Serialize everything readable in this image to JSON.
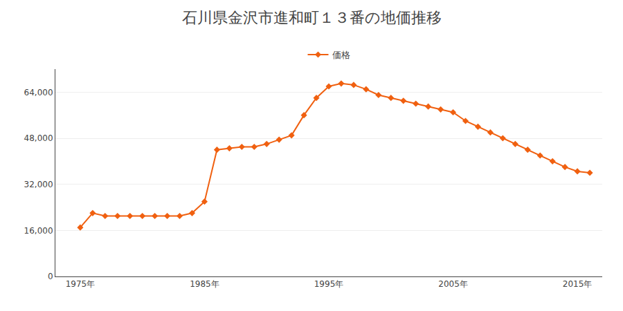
{
  "chart_data": {
    "type": "line",
    "title": "石川県金沢市進和町１３番の地価推移",
    "x": [
      1975,
      1976,
      1977,
      1978,
      1979,
      1980,
      1981,
      1982,
      1983,
      1984,
      1985,
      1986,
      1987,
      1988,
      1989,
      1990,
      1991,
      1992,
      1993,
      1994,
      1995,
      1996,
      1997,
      1998,
      1999,
      2000,
      2001,
      2002,
      2003,
      2004,
      2005,
      2006,
      2007,
      2008,
      2009,
      2010,
      2011,
      2012,
      2013,
      2014,
      2015,
      2016
    ],
    "series": [
      {
        "name": "価格",
        "color": "#f06010",
        "marker": "diamond",
        "values": [
          17000,
          22000,
          21000,
          21000,
          21000,
          21000,
          21000,
          21000,
          21000,
          22000,
          26000,
          44000,
          44500,
          45000,
          45000,
          46000,
          47500,
          49000,
          56000,
          62000,
          66000,
          67000,
          66500,
          65000,
          63000,
          62000,
          61000,
          60000,
          59000,
          58000,
          57000,
          54000,
          52000,
          50000,
          48000,
          46000,
          44000,
          42000,
          40000,
          38000,
          36500,
          36000
        ]
      }
    ],
    "xlim": [
      1973,
      2017
    ],
    "xticks": [
      {
        "value": 1975,
        "label": "1975年"
      },
      {
        "value": 1985,
        "label": "1985年"
      },
      {
        "value": 1995,
        "label": "1995年"
      },
      {
        "value": 2005,
        "label": "2005年"
      },
      {
        "value": 2015,
        "label": "2015年"
      }
    ],
    "ylim": [
      0,
      72000
    ],
    "yticks": [
      0,
      {
        "value": 16000,
        "label": "16,000"
      },
      {
        "value": 32000,
        "label": "32,000"
      },
      {
        "value": 48000,
        "label": "48,000"
      },
      {
        "value": 64000,
        "label": "64,000"
      }
    ],
    "grid": "y",
    "legend": "top"
  }
}
